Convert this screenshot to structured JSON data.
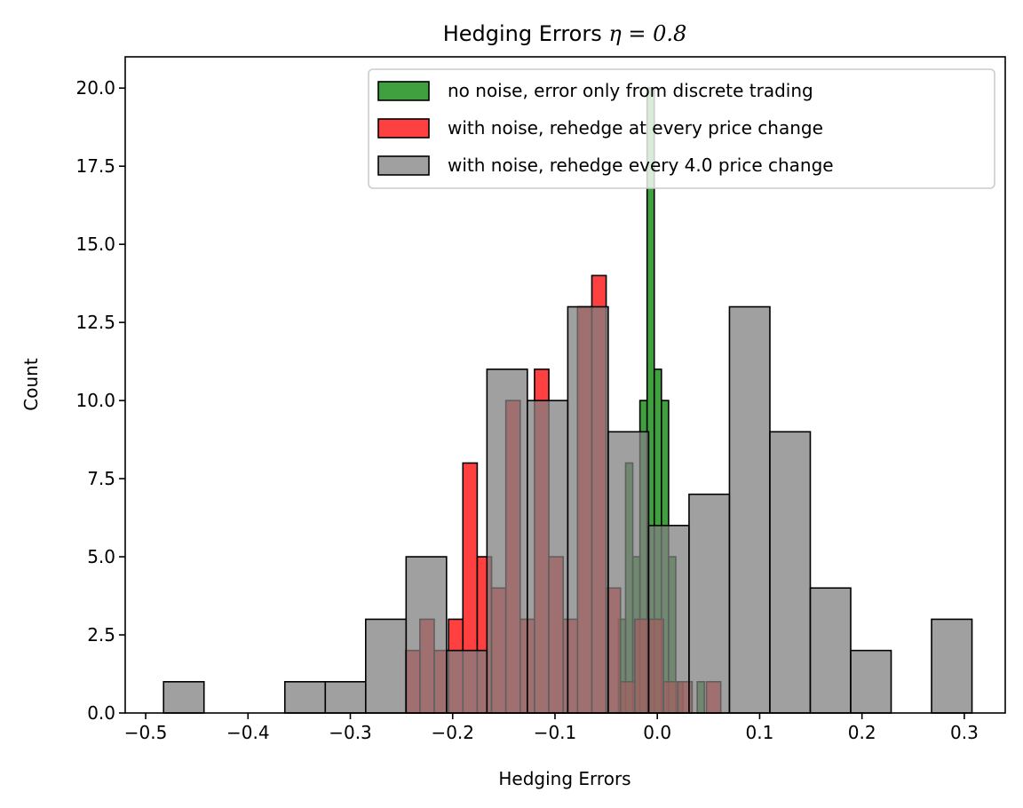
{
  "chart_data": {
    "type": "bar",
    "title": "Hedging Errors",
    "title_math": "η = 0.8",
    "xlabel": "Hedging Errors",
    "ylabel": "Count",
    "xlim": [
      -0.52,
      0.34
    ],
    "ylim": [
      0,
      21
    ],
    "xticks": [
      -0.5,
      -0.4,
      -0.3,
      -0.2,
      -0.1,
      0.0,
      0.1,
      0.2,
      0.3
    ],
    "xtick_labels": [
      "−0.5",
      "−0.4",
      "−0.3",
      "−0.2",
      "−0.1",
      "0.0",
      "0.1",
      "0.2",
      "0.3"
    ],
    "yticks": [
      0,
      2.5,
      5,
      7.5,
      10,
      12.5,
      15,
      17.5,
      20
    ],
    "ytick_labels": [
      "0.0",
      "2.5",
      "5.0",
      "7.5",
      "10.0",
      "12.5",
      "15.0",
      "17.5",
      "20.0"
    ],
    "grid": false,
    "legend_position": "top-right",
    "series": [
      {
        "name": "no noise, error only from discrete trading",
        "color": "#008000",
        "alpha": 0.75,
        "edges": [
          -0.038,
          -0.031,
          -0.024,
          -0.017,
          -0.01,
          -0.003,
          0.004,
          0.011,
          0.018,
          0.025,
          0.032,
          0.039,
          0.046,
          0.053
        ],
        "counts": [
          3,
          8,
          5,
          10,
          20,
          11,
          10,
          5,
          1,
          0,
          0,
          1,
          0
        ]
      },
      {
        "name": "with noise, rehedge at every price change",
        "color": "#ff0000",
        "alpha": 0.75,
        "edges": [
          -0.246,
          -0.232,
          -0.218,
          -0.204,
          -0.19,
          -0.176,
          -0.162,
          -0.148,
          -0.134,
          -0.12,
          -0.106,
          -0.092,
          -0.078,
          -0.064,
          -0.05,
          -0.036,
          -0.022,
          -0.008,
          0.006,
          0.02,
          0.034,
          0.048,
          0.062
        ],
        "counts": [
          2,
          3,
          2,
          3,
          8,
          5,
          4,
          10,
          3,
          11,
          5,
          3,
          13,
          14,
          4,
          1,
          3,
          3,
          1,
          1,
          0,
          1
        ]
      },
      {
        "name": "with noise, rehedge every 4.0 price change",
        "color": "#808080",
        "alpha": 0.75,
        "edges": [
          -0.4825,
          -0.443,
          -0.4035,
          -0.364,
          -0.3245,
          -0.285,
          -0.2455,
          -0.206,
          -0.1665,
          -0.127,
          -0.0875,
          -0.048,
          -0.0085,
          0.031,
          0.0705,
          0.11,
          0.1495,
          0.189,
          0.2285,
          0.268,
          0.3075
        ],
        "counts": [
          1,
          0,
          0,
          1,
          1,
          3,
          5,
          2,
          11,
          10,
          13,
          9,
          6,
          7,
          13,
          9,
          4,
          2,
          0,
          3
        ]
      }
    ]
  }
}
